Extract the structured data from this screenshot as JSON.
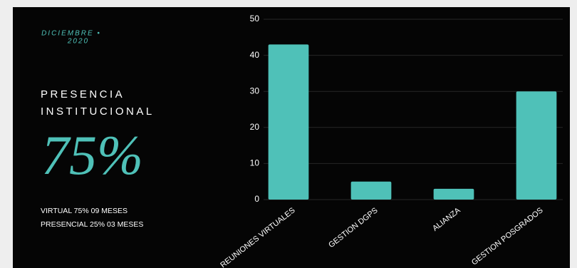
{
  "panel": {
    "date_month": "DICIEMBRE •",
    "date_year": "2020",
    "heading_1": "PRESENCIA",
    "heading_2": "INSTITUCIONAL",
    "big_value": "75%",
    "line_1": "VIRTUAL 75%  09 MESES",
    "line_2": "PRESENCIAL 25%  03 MESES"
  },
  "chart_data": {
    "type": "bar",
    "categories": [
      "REUNIONES VIRTUALES",
      "GESTION DGPS",
      "ALIANZA",
      "GESTION POSGRADOS"
    ],
    "values": [
      43,
      5,
      3,
      30
    ],
    "color": "#4fc1b8",
    "ylim": [
      0,
      50
    ],
    "yticks": [
      0,
      10,
      20,
      30,
      40,
      50
    ],
    "grid": true
  }
}
